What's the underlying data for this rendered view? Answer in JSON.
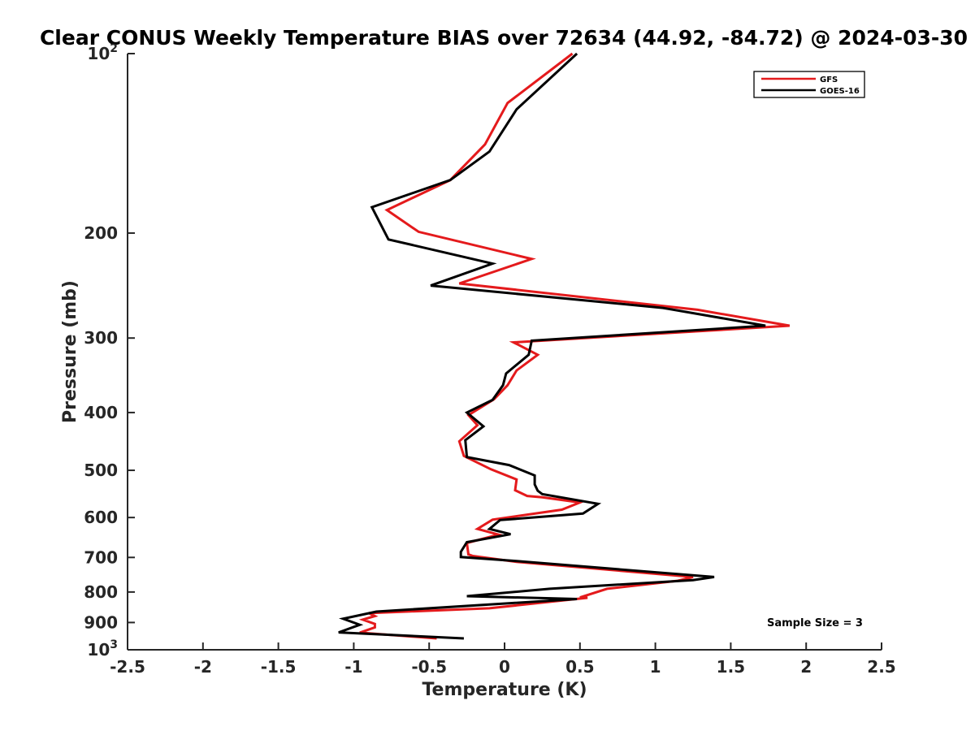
{
  "chart_data": {
    "type": "line",
    "title": "Clear CONUS Weekly Temperature BIAS over 72634 (44.92, -84.72) @ 2024-03-30",
    "xlabel": "Temperature (K)",
    "ylabel": "Pressure (mb)",
    "xlim": [
      -2.5,
      2.5
    ],
    "ylim": [
      100,
      1000
    ],
    "yscale": "log",
    "y_reversed": true,
    "grid": false,
    "legend_position": "top-right",
    "xticks": [
      "-2.5",
      "-2",
      "-1.5",
      "-1",
      "-0.5",
      "0",
      "0.5",
      "1",
      "1.5",
      "2",
      "2.5"
    ],
    "xtick_values": [
      -2.5,
      -2,
      -1.5,
      -1,
      -0.5,
      0,
      0.5,
      1,
      1.5,
      2,
      2.5
    ],
    "ytick_values": [
      100,
      200,
      300,
      400,
      500,
      600,
      700,
      800,
      900,
      1000
    ],
    "ytick_labels": [
      {
        "base": "10",
        "exp": "2"
      },
      {
        "base": "200",
        "exp": ""
      },
      {
        "base": "300",
        "exp": ""
      },
      {
        "base": "400",
        "exp": ""
      },
      {
        "base": "500",
        "exp": ""
      },
      {
        "base": "600",
        "exp": ""
      },
      {
        "base": "700",
        "exp": ""
      },
      {
        "base": "800",
        "exp": ""
      },
      {
        "base": "900",
        "exp": ""
      },
      {
        "base": "10",
        "exp": "3"
      }
    ],
    "series": [
      {
        "name": "GFS",
        "color": "#e41a1c",
        "points": [
          [
            0.45,
            100
          ],
          [
            0.02,
            121
          ],
          [
            -0.13,
            142
          ],
          [
            -0.36,
            163
          ],
          [
            -0.78,
            183
          ],
          [
            -0.57,
            199
          ],
          [
            0.18,
            221
          ],
          [
            -0.3,
            243
          ],
          [
            1.28,
            269
          ],
          [
            1.89,
            286
          ],
          [
            0.06,
            305
          ],
          [
            0.22,
            320
          ],
          [
            0.08,
            340
          ],
          [
            0.02,
            360
          ],
          [
            -0.07,
            380
          ],
          [
            -0.24,
            404
          ],
          [
            -0.18,
            420
          ],
          [
            -0.3,
            447
          ],
          [
            -0.27,
            473
          ],
          [
            -0.09,
            498
          ],
          [
            0.08,
            518
          ],
          [
            0.07,
            540
          ],
          [
            0.15,
            552
          ],
          [
            0.25,
            555
          ],
          [
            0.5,
            566
          ],
          [
            0.38,
            582
          ],
          [
            -0.08,
            605
          ],
          [
            -0.18,
            627
          ],
          [
            -0.04,
            641
          ],
          [
            -0.25,
            662
          ],
          [
            -0.24,
            692
          ],
          [
            -0.21,
            696
          ],
          [
            0.08,
            712
          ],
          [
            1.25,
            755
          ],
          [
            1.15,
            766
          ],
          [
            0.68,
            790
          ],
          [
            0.5,
            817
          ],
          [
            0.55,
            818
          ],
          [
            -0.1,
            852
          ],
          [
            -0.9,
            868
          ],
          [
            -0.86,
            878
          ],
          [
            -0.94,
            890
          ],
          [
            -0.86,
            905
          ],
          [
            -0.86,
            917
          ],
          [
            -0.96,
            936
          ],
          [
            -0.45,
            957
          ]
        ]
      },
      {
        "name": "GOES-16",
        "color": "#000000",
        "points": [
          [
            0.48,
            100
          ],
          [
            0.08,
            124
          ],
          [
            -0.1,
            146
          ],
          [
            -0.36,
            163
          ],
          [
            -0.88,
            181
          ],
          [
            -0.77,
            205
          ],
          [
            -0.08,
            225
          ],
          [
            -0.49,
            245
          ],
          [
            1.05,
            267
          ],
          [
            1.73,
            286
          ],
          [
            0.18,
            303
          ],
          [
            0.16,
            320
          ],
          [
            0.01,
            344
          ],
          [
            -0.01,
            360
          ],
          [
            -0.08,
            381
          ],
          [
            -0.25,
            400
          ],
          [
            -0.14,
            422
          ],
          [
            -0.26,
            445
          ],
          [
            -0.25,
            475
          ],
          [
            0.03,
            490
          ],
          [
            0.2,
            510
          ],
          [
            0.2,
            528
          ],
          [
            0.22,
            541
          ],
          [
            0.25,
            548
          ],
          [
            0.62,
            569
          ],
          [
            0.52,
            591
          ],
          [
            -0.03,
            606
          ],
          [
            -0.1,
            627
          ],
          [
            0.04,
            640
          ],
          [
            -0.25,
            660
          ],
          [
            -0.29,
            685
          ],
          [
            -0.29,
            699
          ],
          [
            0.08,
            710
          ],
          [
            1.39,
            755
          ],
          [
            1.25,
            764
          ],
          [
            0.3,
            790
          ],
          [
            -0.25,
            813
          ],
          [
            0.48,
            822
          ],
          [
            -0.85,
            863
          ],
          [
            -1.07,
            887
          ],
          [
            -0.96,
            908
          ],
          [
            -1.1,
            935
          ],
          [
            -0.27,
            957
          ]
        ]
      }
    ],
    "legend": [
      {
        "label": "GFS",
        "color": "#e41a1c"
      },
      {
        "label": "GOES-16",
        "color": "#000000"
      }
    ],
    "annotation": "Sample Size = 3"
  }
}
